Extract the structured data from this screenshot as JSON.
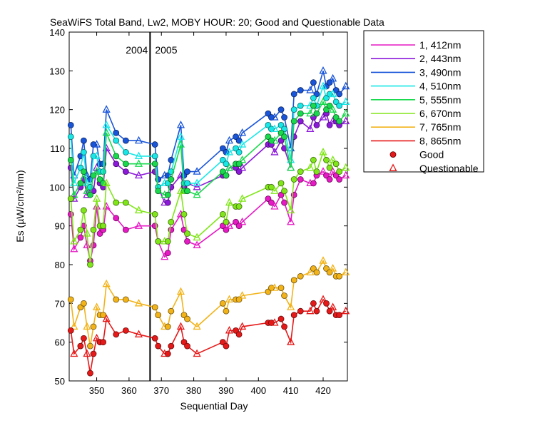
{
  "chart_data": {
    "type": "line",
    "title": "SeaWiFS Total Band,  Lw2, MOBY HOUR: 20;  Good and Questionable Data",
    "xlabel": "Sequential Day",
    "ylabel": "Es (µW/cm²/nm)",
    "xlim": [
      341.5,
      427.5
    ],
    "ylim": [
      50,
      140
    ],
    "xticks": [
      350,
      360,
      370,
      380,
      390,
      400,
      410,
      420
    ],
    "yticks": [
      50,
      60,
      70,
      80,
      90,
      100,
      110,
      120,
      130,
      140
    ],
    "divider": {
      "x": 366.5,
      "left_label": "2004",
      "right_label": "2005"
    },
    "x": [
      342,
      343,
      345,
      346,
      347,
      348,
      349,
      350,
      351,
      352,
      353,
      356,
      359,
      363,
      368,
      369,
      371,
      372,
      373,
      376,
      377,
      378,
      381,
      389,
      390,
      391,
      393,
      394,
      395,
      403,
      404,
      405,
      407,
      408,
      410,
      411,
      413,
      416,
      417,
      418,
      420,
      421,
      422,
      423,
      424,
      425,
      427
    ],
    "series": [
      {
        "name": "1, 412nm",
        "color": "#e619c4",
        "values": [
          93,
          84,
          87,
          90,
          85,
          81,
          85,
          95,
          88,
          89,
          95,
          92,
          89,
          90,
          90,
          86,
          82,
          83,
          89,
          93,
          89,
          86,
          85,
          90,
          89,
          90,
          91,
          90,
          91,
          97,
          96,
          95,
          98,
          96,
          91,
          98,
          102,
          101,
          101,
          103,
          104,
          103,
          102,
          104,
          103,
          102,
          103
        ]
      },
      {
        "name": "2, 443nm",
        "color": "#8c19d9",
        "values": [
          105,
          97,
          100,
          102,
          98,
          99,
          99,
          105,
          101,
          100,
          110,
          106,
          104,
          103,
          104,
          100,
          96,
          96,
          100,
          103,
          100,
          101,
          100,
          103,
          103,
          105,
          105,
          104,
          105,
          111,
          111,
          109,
          112,
          110,
          105,
          113,
          117,
          115,
          118,
          116,
          118,
          119,
          116,
          117,
          117,
          116,
          117
        ]
      },
      {
        "name": "3, 490nm",
        "color": "#1955d9",
        "values": [
          116,
          103,
          108,
          112,
          103,
          102,
          111,
          111,
          106,
          106,
          120,
          114,
          112,
          112,
          111,
          102,
          103,
          103,
          107,
          116,
          103,
          104,
          104,
          110,
          109,
          112,
          113,
          112,
          114,
          119,
          118,
          118,
          120,
          118,
          110,
          124,
          125,
          125,
          127,
          124,
          130,
          126,
          127,
          128,
          125,
          124,
          126
        ]
      },
      {
        "name": "4, 510nm",
        "color": "#19e6e6",
        "values": [
          113,
          101,
          105,
          109,
          101,
          100,
          108,
          108,
          104,
          104,
          116,
          112,
          109,
          108,
          108,
          100,
          101,
          101,
          104,
          113,
          101,
          101,
          101,
          107,
          106,
          109,
          110,
          109,
          111,
          116,
          115,
          115,
          116,
          115,
          107,
          120,
          121,
          121,
          123,
          121,
          126,
          123,
          124,
          124,
          122,
          121,
          122
        ]
      },
      {
        "name": "5, 555nm",
        "color": "#19d94d",
        "values": [
          107,
          98,
          101,
          104,
          99,
          98,
          103,
          104,
          102,
          101,
          114,
          108,
          106,
          106,
          106,
          99,
          98,
          98,
          102,
          111,
          99,
          99,
          98,
          104,
          103,
          105,
          106,
          106,
          107,
          113,
          112,
          112,
          114,
          113,
          105,
          117,
          119,
          119,
          121,
          119,
          122,
          120,
          121,
          120,
          118,
          117,
          119
        ]
      },
      {
        "name": "6, 670nm",
        "color": "#80e619",
        "values": [
          97,
          86,
          89,
          94,
          88,
          80,
          89,
          97,
          90,
          90,
          101,
          96,
          96,
          94,
          93,
          86,
          86,
          86,
          91,
          99,
          93,
          88,
          87,
          93,
          91,
          96,
          95,
          95,
          97,
          100,
          100,
          99,
          101,
          99,
          94,
          102,
          104,
          105,
          107,
          104,
          109,
          107,
          105,
          107,
          106,
          104,
          105
        ]
      },
      {
        "name": "7, 765nm",
        "color": "#f2b319",
        "values": [
          71,
          64,
          69,
          70,
          64,
          59,
          64,
          69,
          67,
          67,
          75,
          71,
          71,
          70,
          69,
          67,
          64,
          64,
          68,
          73,
          67,
          66,
          64,
          70,
          68,
          71,
          71,
          71,
          72,
          73,
          74,
          74,
          74,
          72,
          69,
          76,
          77,
          78,
          79,
          78,
          81,
          79,
          78,
          79,
          77,
          77,
          78
        ]
      },
      {
        "name": "8, 865nm",
        "color": "#e61919",
        "values": [
          63,
          57,
          59,
          61,
          57,
          52,
          57,
          61,
          60,
          60,
          66,
          62,
          63,
          62,
          61,
          59,
          57,
          57,
          59,
          64,
          60,
          59,
          57,
          60,
          59,
          63,
          63,
          62,
          64,
          65,
          65,
          65,
          66,
          64,
          60,
          67,
          68,
          68,
          70,
          68,
          71,
          70,
          68,
          69,
          67,
          67,
          68
        ]
      }
    ],
    "legend": {
      "placement": "outside-right",
      "markers": [
        {
          "label": "Good",
          "symbol": "circle"
        },
        {
          "label": "Questionable",
          "symbol": "triangle"
        }
      ]
    },
    "grid": false
  }
}
